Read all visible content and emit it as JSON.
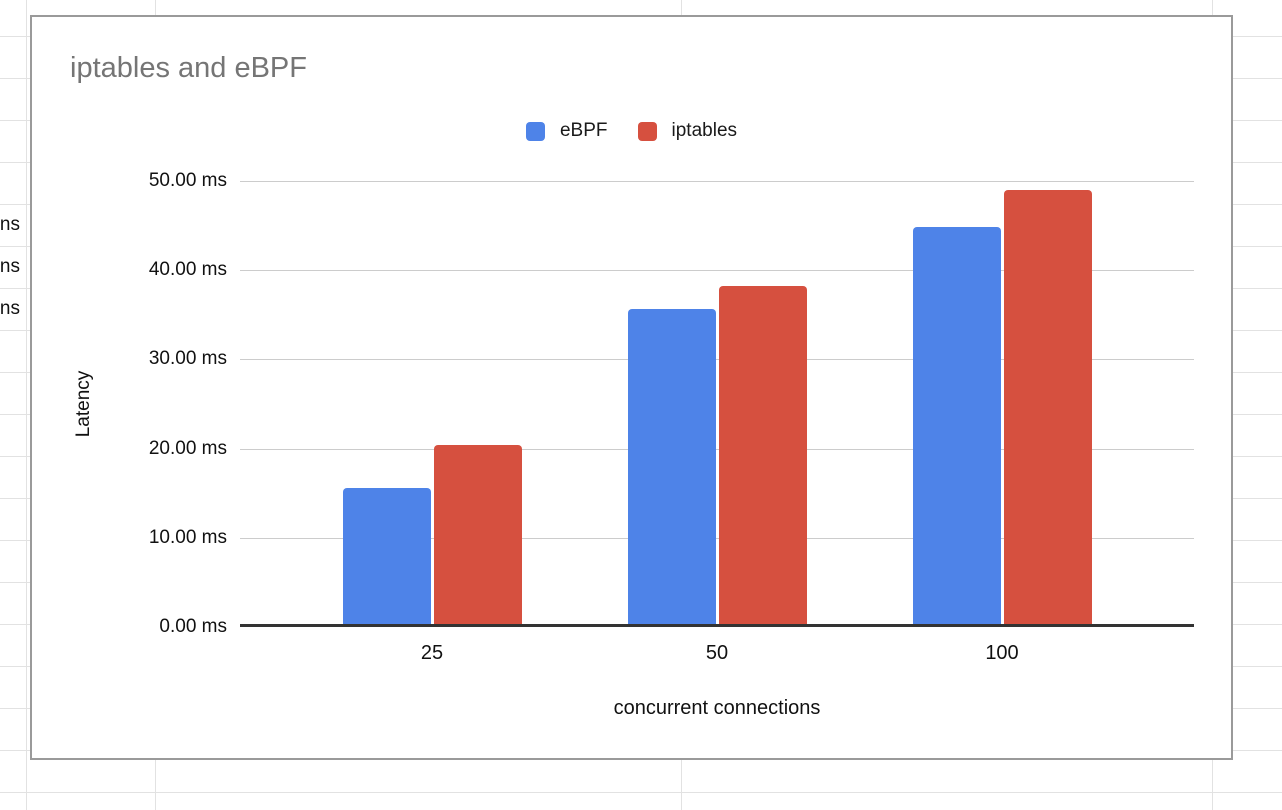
{
  "background": {
    "cell_fragments": [
      "ns",
      "ns",
      "ns"
    ]
  },
  "chart_data": {
    "type": "bar",
    "title": "iptables and eBPF",
    "title_color": "#757575",
    "categories": [
      "25",
      "50",
      "100"
    ],
    "series": [
      {
        "name": "eBPF",
        "color": "#4e83e8",
        "values": [
          15.6,
          35.7,
          44.8
        ]
      },
      {
        "name": "iptables",
        "color": "#d6503f",
        "values": [
          20.4,
          38.2,
          49.0
        ]
      }
    ],
    "xlabel": "concurrent connections",
    "ylabel": "Latency",
    "ylim": [
      0,
      50
    ],
    "yticks": [
      "0.00 ms",
      "10.00 ms",
      "20.00 ms",
      "30.00 ms",
      "40.00 ms",
      "50.00 ms"
    ],
    "grid": true,
    "legend_position": "top"
  }
}
